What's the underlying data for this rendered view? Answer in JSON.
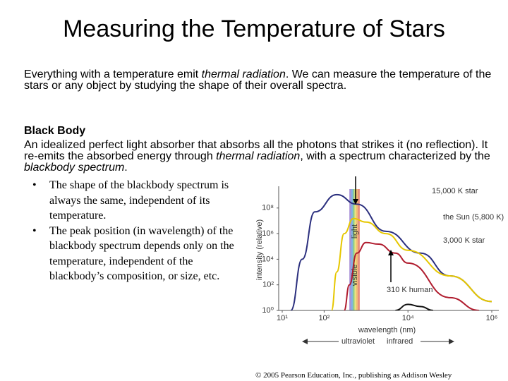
{
  "slide": {
    "title": "Measuring the Temperature of Stars",
    "intro": [
      "Everything with a temperature emit ",
      "thermal radiation",
      ". We can measure the temperature of the stars or any object  by studying the shape of their overall spectra."
    ],
    "heading": "Black Body",
    "body": [
      "An idealized perfect light absorber that absorbs all the photons that strikes it (no reflection). It re-emits the absorbed energy through ",
      "thermal radiation",
      ", with a spectrum characterized by the ",
      "blackbody spectrum",
      "."
    ],
    "bullets": [
      "The shape of the blackbody spectrum is always the same, independent of its temperature.",
      "The peak position (in wavelength) of the blackbody spectrum depends only on the temperature, independent of the blackbody’s composition, or size, etc."
    ],
    "credit": "© 2005 Pearson Education, Inc., publishing as Addison Wesley"
  },
  "chart_data": {
    "type": "line",
    "x_label": "wavelength (nm)",
    "y_label": "intensity (relative)",
    "log_x": true,
    "log_y": true,
    "xlim": [
      10,
      1000000
    ],
    "ylim": [
      1,
      3000000000
    ],
    "xticks": [
      {
        "value": 10,
        "label": "10¹"
      },
      {
        "value": 100,
        "label": "10²"
      },
      {
        "value": 10000,
        "label": "10⁴"
      },
      {
        "value": 1000000,
        "label": "10⁶"
      }
    ],
    "yticks": [
      {
        "value": 1,
        "label": "10⁰"
      },
      {
        "value": 100,
        "label": "10²"
      },
      {
        "value": 10000,
        "label": "10⁴"
      },
      {
        "value": 1000000,
        "label": "10⁶"
      },
      {
        "value": 100000000,
        "label": "10⁸"
      }
    ],
    "band": {
      "range": [
        400,
        700
      ],
      "labels": [
        "visible",
        "light"
      ]
    },
    "direction_labels": [
      "ultraviolet",
      "infrared"
    ],
    "series": [
      {
        "name": "15,000 K star",
        "color": "#2b2f7e",
        "x": [
          16,
          30,
          60,
          200,
          600,
          3000,
          20000,
          100000,
          1000000
        ],
        "values": [
          1,
          10000,
          50000000,
          1100000000,
          200000000,
          1500000,
          30000,
          500,
          5
        ]
      },
      {
        "name": "the Sun (5,800 K)",
        "color": "#e6c700",
        "x": [
          150,
          200,
          300,
          500,
          1000,
          3000,
          10000,
          100000,
          1000000
        ],
        "values": [
          1,
          1000,
          1000000,
          15000000,
          8000000,
          1000000,
          50000,
          500,
          5
        ]
      },
      {
        "name": "3,000 K star",
        "color": "#b01c2e",
        "x": [
          300,
          400,
          600,
          1000,
          2000,
          5000,
          10000,
          100000,
          500000
        ],
        "values": [
          1,
          100,
          30000,
          200000,
          150000,
          30000,
          5000,
          10,
          1
        ]
      },
      {
        "name": "310 K human",
        "color": "#111111",
        "x": [
          5000,
          10000,
          20000,
          40000
        ],
        "values": [
          1,
          3,
          2,
          1
        ]
      }
    ]
  }
}
